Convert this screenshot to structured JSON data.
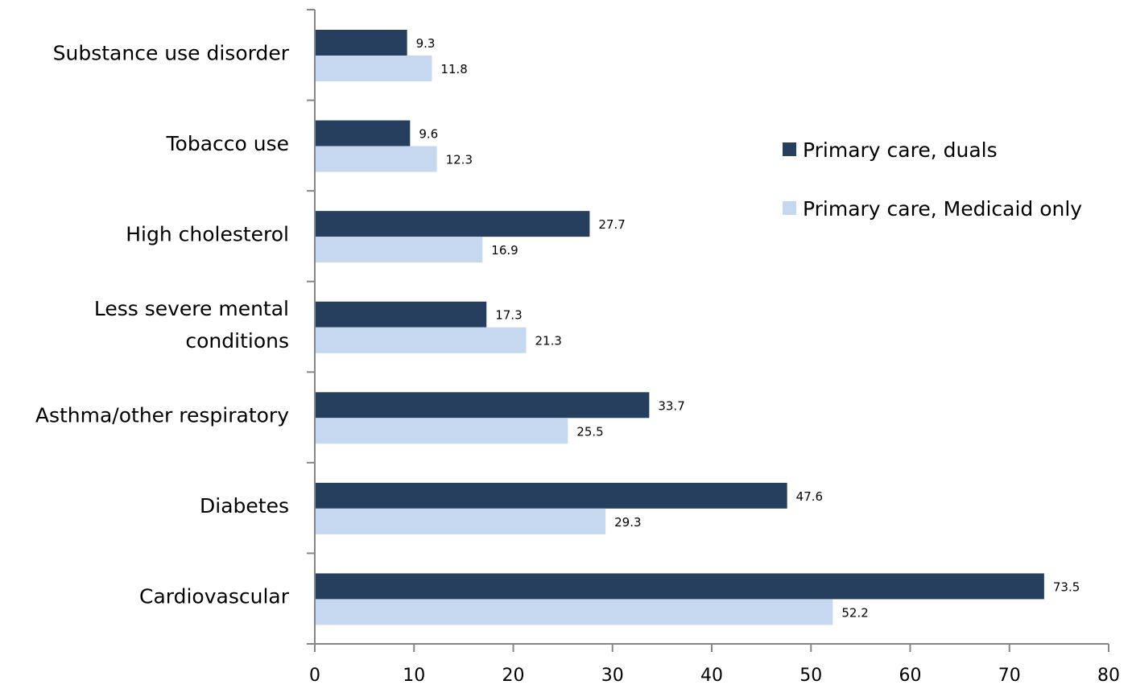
{
  "chart_data": {
    "type": "bar",
    "orientation": "horizontal",
    "categories": [
      "Substance use disorder",
      "Tobacco use",
      "High cholesterol",
      "Less severe mental conditions",
      "Asthma/other respiratory",
      "Diabetes",
      "Cardiovascular"
    ],
    "series": [
      {
        "name": "Primary care, duals",
        "color": "#263F5F",
        "values": [
          9.3,
          9.6,
          27.7,
          17.3,
          33.7,
          47.6,
          73.5
        ]
      },
      {
        "name": "Primary care, Medicaid only",
        "color": "#C6D8EF",
        "values": [
          11.8,
          12.3,
          16.9,
          21.3,
          25.5,
          29.3,
          52.2
        ]
      }
    ],
    "xlim": [
      0,
      80
    ],
    "xticks": [
      0,
      10,
      20,
      30,
      40,
      50,
      60,
      70,
      80
    ],
    "grid": false,
    "legend_position": "top-right",
    "data_labels": true
  }
}
